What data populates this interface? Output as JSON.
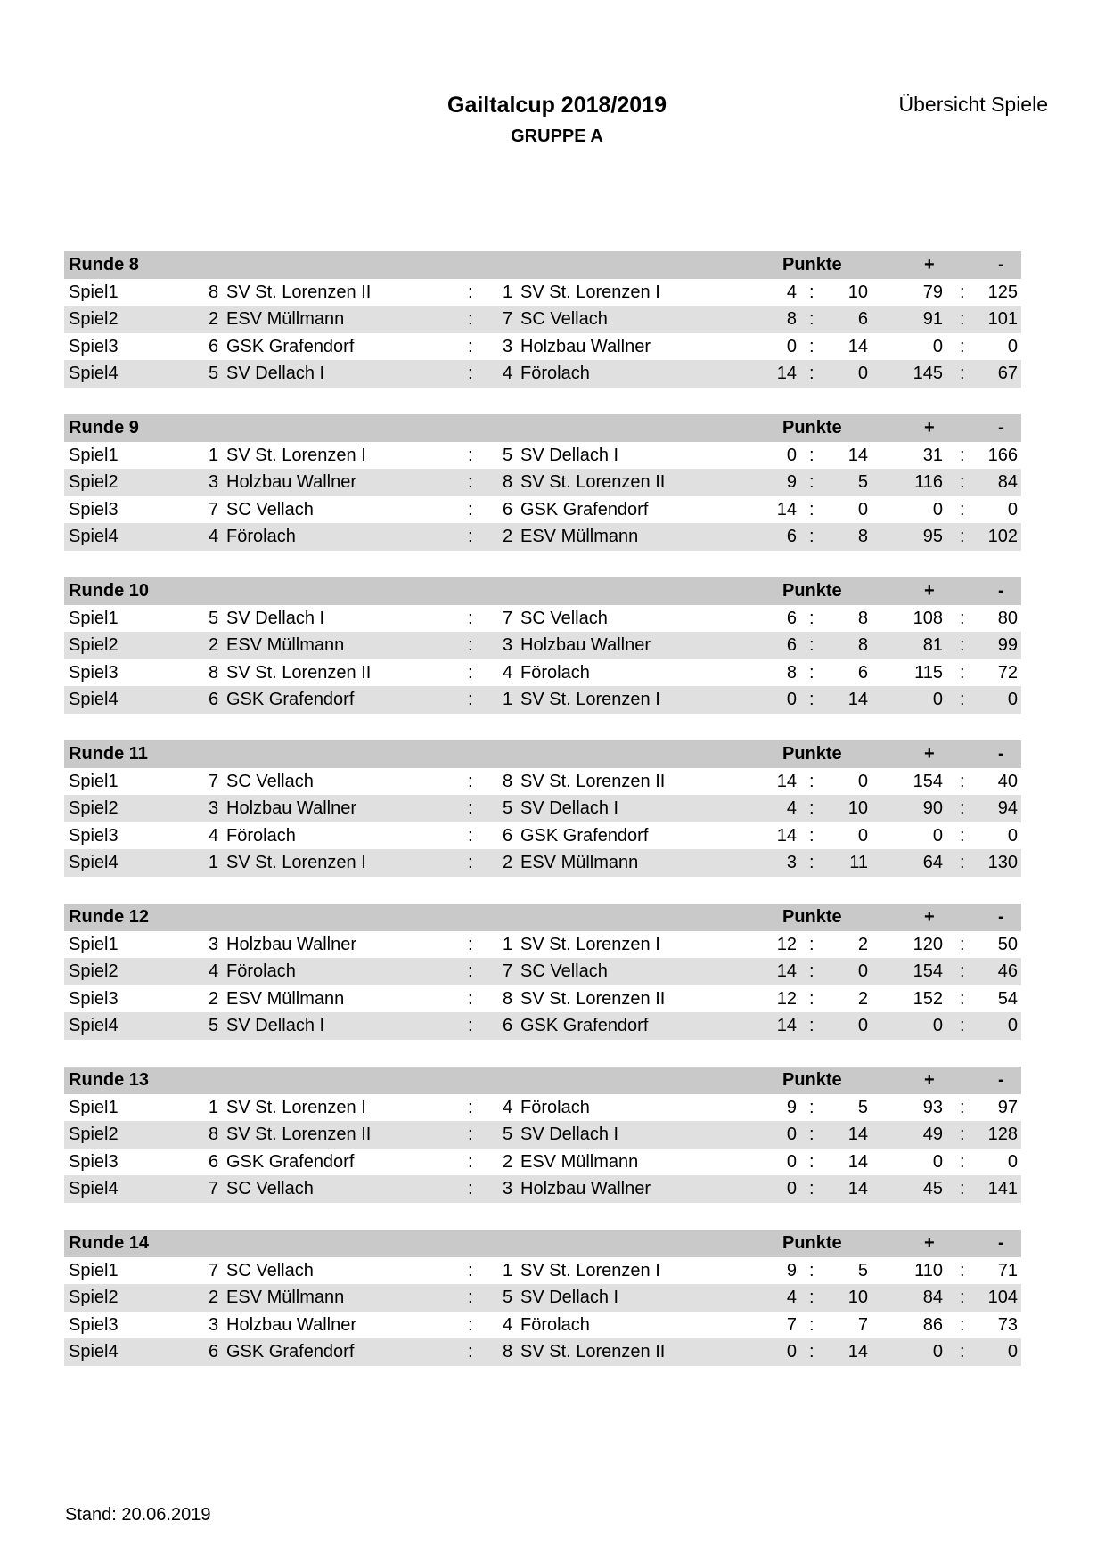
{
  "header": {
    "title": "Gailtalcup 2018/2019",
    "subtitle": "GRUPPE A",
    "overview": "Übersicht Spiele"
  },
  "column_labels": {
    "points": "Punkte",
    "plus": "+",
    "minus": "-",
    "separator": ":"
  },
  "rounds": [
    {
      "label": "Runde 8",
      "games": [
        {
          "game": "Spiel1",
          "home_no": "8",
          "home": "SV St. Lorenzen II",
          "away_no": "1",
          "away": "SV St. Lorenzen I",
          "pts_home": "4",
          "pts_away": "10",
          "plus": "79",
          "minus": "125"
        },
        {
          "game": "Spiel2",
          "home_no": "2",
          "home": "ESV Müllmann",
          "away_no": "7",
          "away": "SC Vellach",
          "pts_home": "8",
          "pts_away": "6",
          "plus": "91",
          "minus": "101"
        },
        {
          "game": "Spiel3",
          "home_no": "6",
          "home": "GSK Grafendorf",
          "away_no": "3",
          "away": "Holzbau Wallner",
          "pts_home": "0",
          "pts_away": "14",
          "plus": "0",
          "minus": "0"
        },
        {
          "game": "Spiel4",
          "home_no": "5",
          "home": "SV Dellach I",
          "away_no": "4",
          "away": "Förolach",
          "pts_home": "14",
          "pts_away": "0",
          "plus": "145",
          "minus": "67"
        }
      ]
    },
    {
      "label": "Runde 9",
      "games": [
        {
          "game": "Spiel1",
          "home_no": "1",
          "home": "SV St. Lorenzen I",
          "away_no": "5",
          "away": "SV Dellach I",
          "pts_home": "0",
          "pts_away": "14",
          "plus": "31",
          "minus": "166"
        },
        {
          "game": "Spiel2",
          "home_no": "3",
          "home": "Holzbau Wallner",
          "away_no": "8",
          "away": "SV St. Lorenzen II",
          "pts_home": "9",
          "pts_away": "5",
          "plus": "116",
          "minus": "84"
        },
        {
          "game": "Spiel3",
          "home_no": "7",
          "home": "SC Vellach",
          "away_no": "6",
          "away": "GSK Grafendorf",
          "pts_home": "14",
          "pts_away": "0",
          "plus": "0",
          "minus": "0"
        },
        {
          "game": "Spiel4",
          "home_no": "4",
          "home": "Förolach",
          "away_no": "2",
          "away": "ESV Müllmann",
          "pts_home": "6",
          "pts_away": "8",
          "plus": "95",
          "minus": "102"
        }
      ]
    },
    {
      "label": "Runde 10",
      "games": [
        {
          "game": "Spiel1",
          "home_no": "5",
          "home": "SV Dellach I",
          "away_no": "7",
          "away": "SC Vellach",
          "pts_home": "6",
          "pts_away": "8",
          "plus": "108",
          "minus": "80"
        },
        {
          "game": "Spiel2",
          "home_no": "2",
          "home": "ESV Müllmann",
          "away_no": "3",
          "away": "Holzbau Wallner",
          "pts_home": "6",
          "pts_away": "8",
          "plus": "81",
          "minus": "99"
        },
        {
          "game": "Spiel3",
          "home_no": "8",
          "home": "SV St. Lorenzen II",
          "away_no": "4",
          "away": "Förolach",
          "pts_home": "8",
          "pts_away": "6",
          "plus": "115",
          "minus": "72"
        },
        {
          "game": "Spiel4",
          "home_no": "6",
          "home": "GSK Grafendorf",
          "away_no": "1",
          "away": "SV St. Lorenzen I",
          "pts_home": "0",
          "pts_away": "14",
          "plus": "0",
          "minus": "0"
        }
      ]
    },
    {
      "label": "Runde 11",
      "games": [
        {
          "game": "Spiel1",
          "home_no": "7",
          "home": "SC Vellach",
          "away_no": "8",
          "away": "SV St. Lorenzen II",
          "pts_home": "14",
          "pts_away": "0",
          "plus": "154",
          "minus": "40"
        },
        {
          "game": "Spiel2",
          "home_no": "3",
          "home": "Holzbau Wallner",
          "away_no": "5",
          "away": "SV Dellach I",
          "pts_home": "4",
          "pts_away": "10",
          "plus": "90",
          "minus": "94"
        },
        {
          "game": "Spiel3",
          "home_no": "4",
          "home": "Förolach",
          "away_no": "6",
          "away": "GSK Grafendorf",
          "pts_home": "14",
          "pts_away": "0",
          "plus": "0",
          "minus": "0"
        },
        {
          "game": "Spiel4",
          "home_no": "1",
          "home": "SV St. Lorenzen I",
          "away_no": "2",
          "away": "ESV Müllmann",
          "pts_home": "3",
          "pts_away": "11",
          "plus": "64",
          "minus": "130"
        }
      ]
    },
    {
      "label": "Runde 12",
      "games": [
        {
          "game": "Spiel1",
          "home_no": "3",
          "home": "Holzbau Wallner",
          "away_no": "1",
          "away": "SV St. Lorenzen I",
          "pts_home": "12",
          "pts_away": "2",
          "plus": "120",
          "minus": "50"
        },
        {
          "game": "Spiel2",
          "home_no": "4",
          "home": "Förolach",
          "away_no": "7",
          "away": "SC Vellach",
          "pts_home": "14",
          "pts_away": "0",
          "plus": "154",
          "minus": "46"
        },
        {
          "game": "Spiel3",
          "home_no": "2",
          "home": "ESV Müllmann",
          "away_no": "8",
          "away": "SV St. Lorenzen II",
          "pts_home": "12",
          "pts_away": "2",
          "plus": "152",
          "minus": "54"
        },
        {
          "game": "Spiel4",
          "home_no": "5",
          "home": "SV Dellach I",
          "away_no": "6",
          "away": "GSK Grafendorf",
          "pts_home": "14",
          "pts_away": "0",
          "plus": "0",
          "minus": "0"
        }
      ]
    },
    {
      "label": "Runde 13",
      "games": [
        {
          "game": "Spiel1",
          "home_no": "1",
          "home": "SV St. Lorenzen I",
          "away_no": "4",
          "away": "Förolach",
          "pts_home": "9",
          "pts_away": "5",
          "plus": "93",
          "minus": "97"
        },
        {
          "game": "Spiel2",
          "home_no": "8",
          "home": "SV St. Lorenzen II",
          "away_no": "5",
          "away": "SV Dellach I",
          "pts_home": "0",
          "pts_away": "14",
          "plus": "49",
          "minus": "128"
        },
        {
          "game": "Spiel3",
          "home_no": "6",
          "home": "GSK Grafendorf",
          "away_no": "2",
          "away": "ESV Müllmann",
          "pts_home": "0",
          "pts_away": "14",
          "plus": "0",
          "minus": "0"
        },
        {
          "game": "Spiel4",
          "home_no": "7",
          "home": "SC Vellach",
          "away_no": "3",
          "away": "Holzbau Wallner",
          "pts_home": "0",
          "pts_away": "14",
          "plus": "45",
          "minus": "141"
        }
      ]
    },
    {
      "label": "Runde 14",
      "games": [
        {
          "game": "Spiel1",
          "home_no": "7",
          "home": "SC Vellach",
          "away_no": "1",
          "away": "SV St. Lorenzen I",
          "pts_home": "9",
          "pts_away": "5",
          "plus": "110",
          "minus": "71"
        },
        {
          "game": "Spiel2",
          "home_no": "2",
          "home": "ESV Müllmann",
          "away_no": "5",
          "away": "SV Dellach I",
          "pts_home": "4",
          "pts_away": "10",
          "plus": "84",
          "minus": "104"
        },
        {
          "game": "Spiel3",
          "home_no": "3",
          "home": "Holzbau Wallner",
          "away_no": "4",
          "away": "Förolach",
          "pts_home": "7",
          "pts_away": "7",
          "plus": "86",
          "minus": "73"
        },
        {
          "game": "Spiel4",
          "home_no": "6",
          "home": "GSK Grafendorf",
          "away_no": "8",
          "away": "SV St. Lorenzen II",
          "pts_home": "0",
          "pts_away": "14",
          "plus": "0",
          "minus": "0"
        }
      ]
    }
  ],
  "footer": {
    "stand": "Stand: 20.06.2019"
  },
  "colors": {
    "header_row": "#c9c9c9",
    "alt_row": "#e0e0e0"
  }
}
